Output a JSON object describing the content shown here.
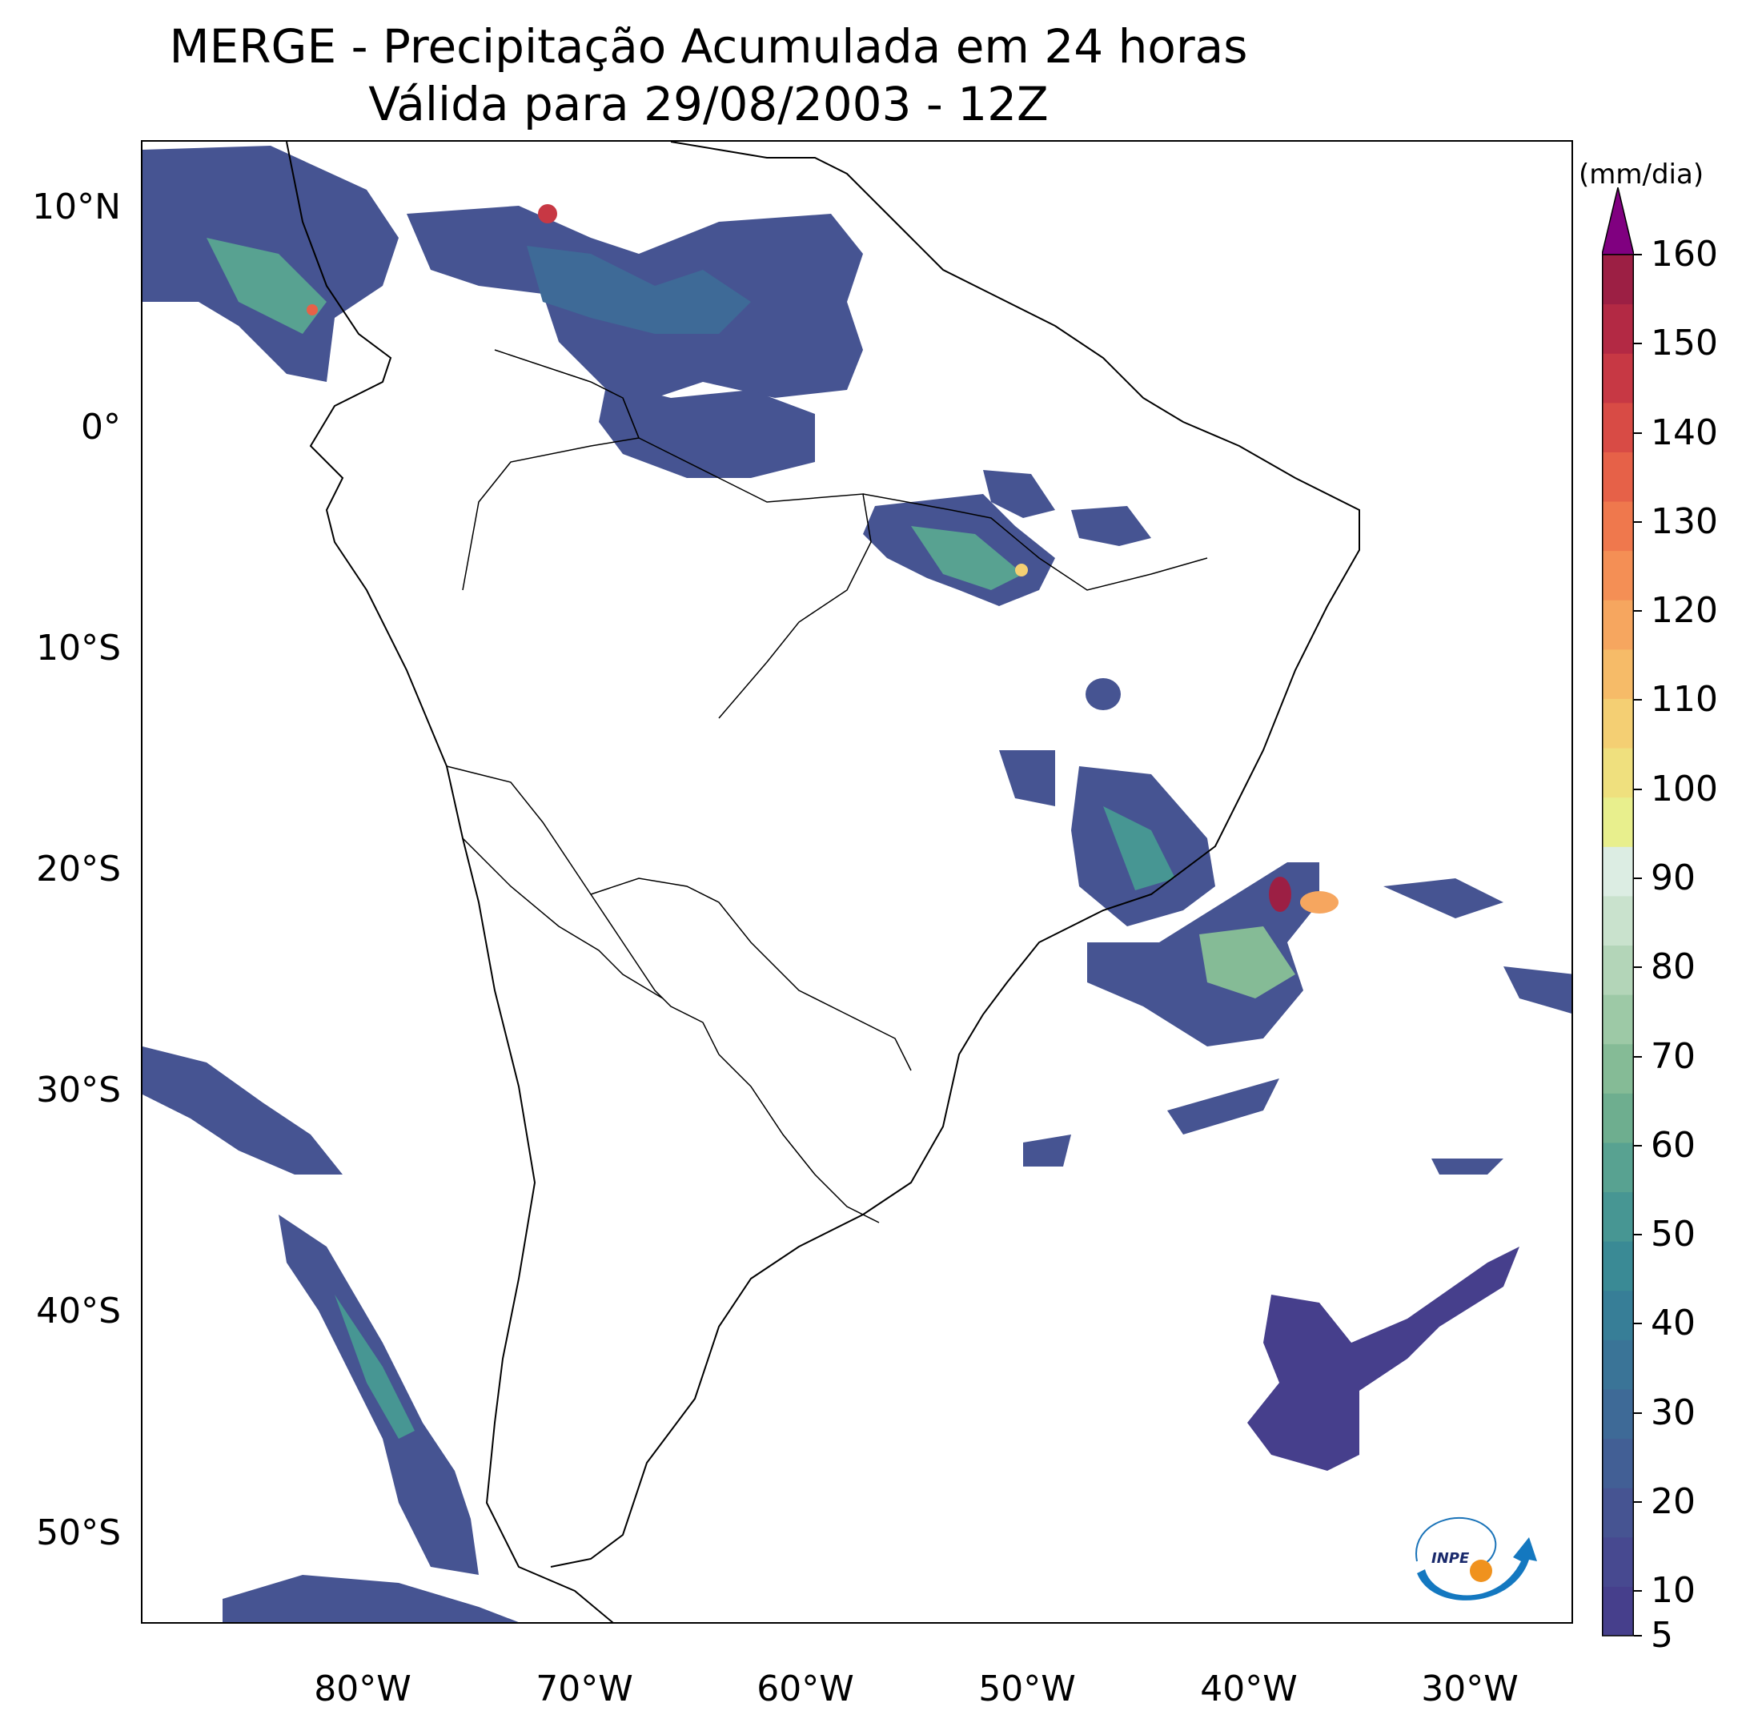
{
  "title": {
    "line1": "MERGE - Precipitação Acumulada em 24 horas",
    "line2": "Válida para 29/08/2003 - 12Z"
  },
  "axes": {
    "lat_labels": [
      "10°N",
      "0°",
      "10°S",
      "20°S",
      "30°S",
      "40°S",
      "50°S"
    ],
    "lon_labels": [
      "80°W",
      "70°W",
      "60°W",
      "50°W",
      "40°W",
      "30°W"
    ]
  },
  "colorbar": {
    "unit": "(mm/dia)",
    "tick_labels": [
      "5",
      "10",
      "20",
      "30",
      "40",
      "50",
      "60",
      "70",
      "80",
      "90",
      "100",
      "110",
      "120",
      "130",
      "140",
      "150",
      "160"
    ],
    "extend": "max",
    "over_color": "#800080",
    "colors": [
      "#463f8c",
      "#474990",
      "#465492",
      "#425f95",
      "#3e6a97",
      "#3a7497",
      "#377e97",
      "#3a8a95",
      "#479693",
      "#58a291",
      "#6eae8f",
      "#85bb96",
      "#9dc9a6",
      "#b3d5b8",
      "#c9e2cd",
      "#dcede3",
      "#e8ef8d",
      "#efe07e",
      "#f4cf73",
      "#f6bb68",
      "#f6a65f",
      "#f48f55",
      "#ef784d",
      "#e66148",
      "#d84b45",
      "#c73844",
      "#b32944",
      "#9c1f44"
    ]
  },
  "logo": {
    "text": "INPE"
  }
}
